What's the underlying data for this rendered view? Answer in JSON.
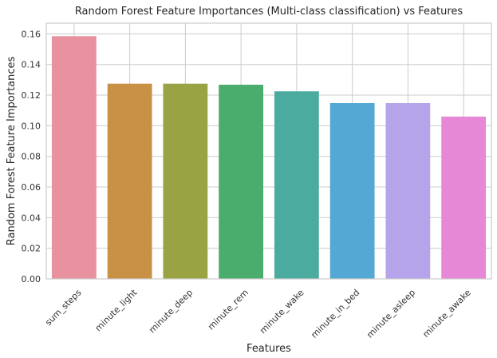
{
  "chart_data": {
    "type": "bar",
    "title": "Random Forest Feature Importances (Multi-class classification) vs Features",
    "xlabel": "Features",
    "ylabel": "Random Forest Feature Importances",
    "categories": [
      "sum_steps",
      "minute_light",
      "minute_deep",
      "minute_rem",
      "minute_wake",
      "minute_in_bed",
      "minute_asleep",
      "minute_awake"
    ],
    "values": [
      0.1585,
      0.1275,
      0.1275,
      0.1268,
      0.1225,
      0.1148,
      0.1148,
      0.106
    ],
    "colors": [
      "#e8929f",
      "#c99145",
      "#99a343",
      "#4aad6d",
      "#4bab9e",
      "#53a9d3",
      "#b5a4ea",
      "#e688d6"
    ],
    "ylim": [
      0,
      0.167
    ],
    "yticks": [
      "0.00",
      "0.02",
      "0.04",
      "0.06",
      "0.08",
      "0.10",
      "0.12",
      "0.14",
      "0.16"
    ],
    "grid": true,
    "legend": "none"
  }
}
